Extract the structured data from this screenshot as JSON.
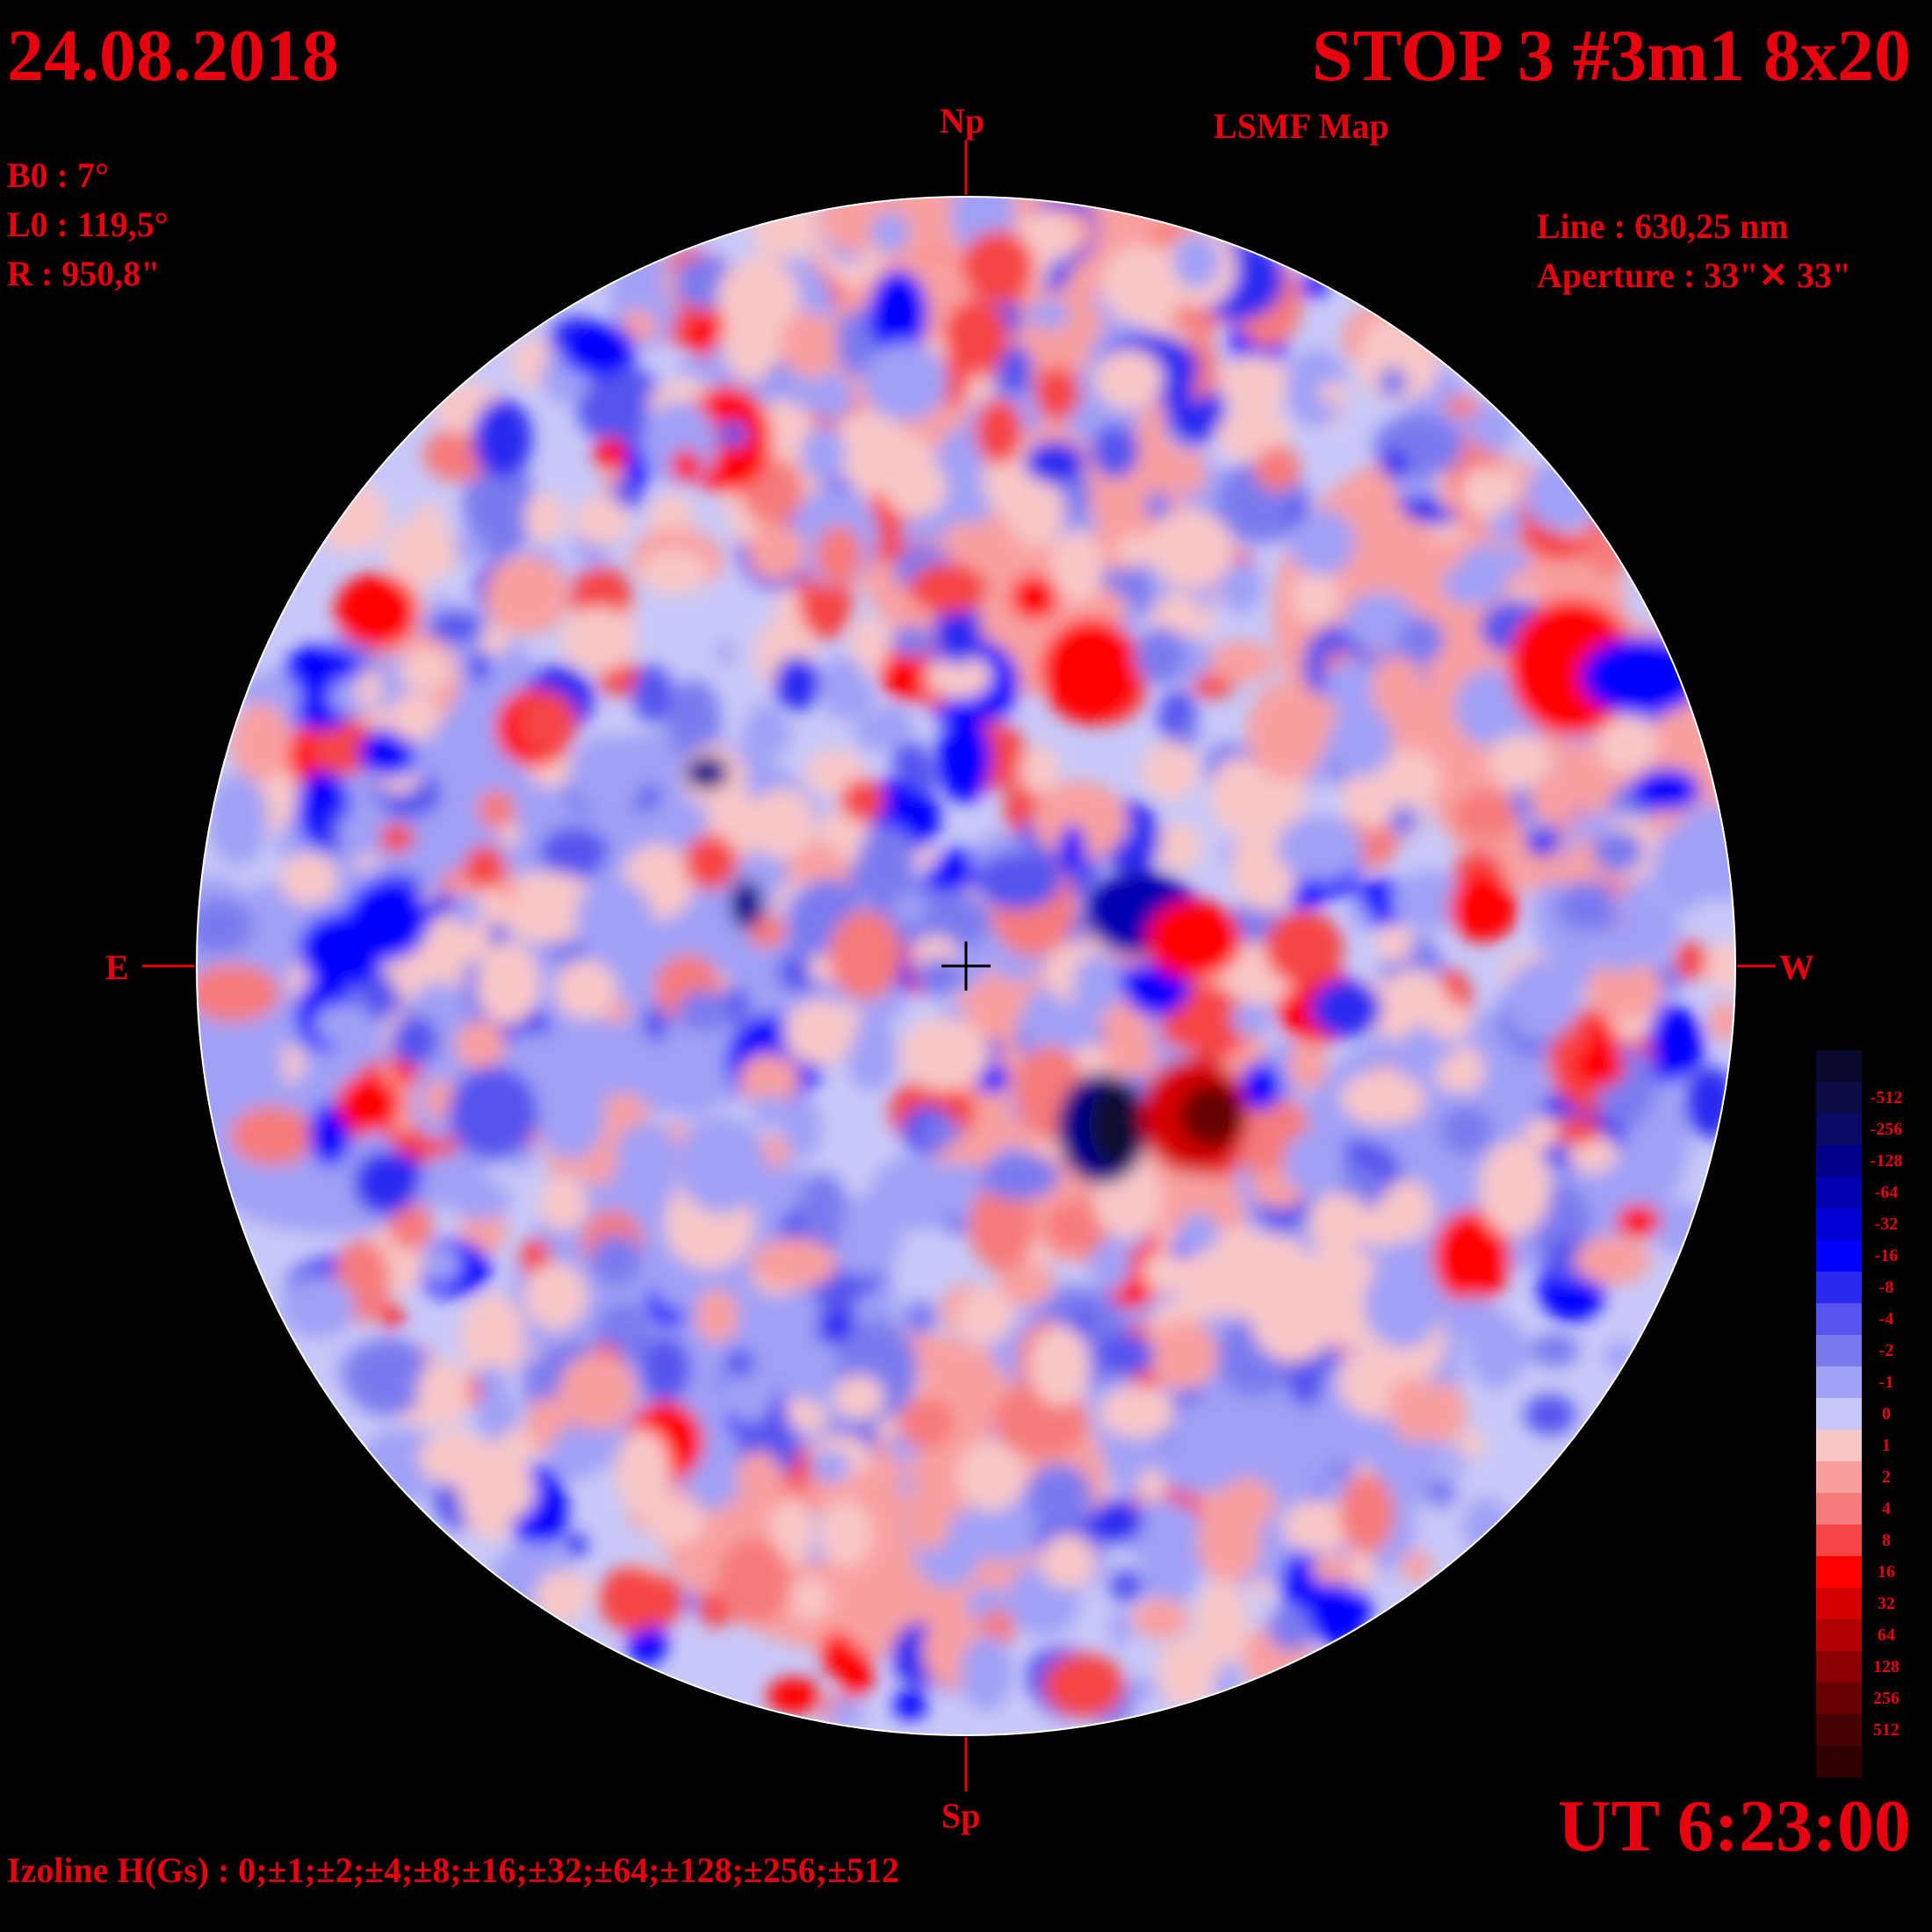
{
  "header": {
    "date": "24.08.2018",
    "title": "STOP 3 #3m1 8x20",
    "subtitle": "LSMF  Map"
  },
  "params": {
    "b0": "B0 : 7°",
    "l0": "L0 : 119,5°",
    "radius": "R  : 950,8\""
  },
  "instrument": {
    "line": "Line :  630,25 nm",
    "aperture": "Aperture : 33\"✕ 33\""
  },
  "time": "UT 6:23:00",
  "izoline": "Izoline H(Gs) : 0;±1;±2;±4;±8;±16;±32;±64;±128;±256;±512",
  "directions": {
    "north": "Np",
    "south": "Sp",
    "east": "E",
    "west": "W"
  },
  "legend": [
    {
      "label": "",
      "color": "#0a0a30"
    },
    {
      "label": "-512",
      "color": "#0b0b45"
    },
    {
      "label": "-256",
      "color": "#0a0a66"
    },
    {
      "label": "-128",
      "color": "#00008a"
    },
    {
      "label": "-64",
      "color": "#0000b0"
    },
    {
      "label": "-32",
      "color": "#0000d5"
    },
    {
      "label": "-16",
      "color": "#0000ff"
    },
    {
      "label": "-8",
      "color": "#2a2af0"
    },
    {
      "label": "-4",
      "color": "#5555ee"
    },
    {
      "label": "-2",
      "color": "#7a7aee"
    },
    {
      "label": "-1",
      "color": "#a0a0f5"
    },
    {
      "label": "0",
      "color": "#c8c8f8"
    },
    {
      "label": "1",
      "color": "#f8c8c8"
    },
    {
      "label": "2",
      "color": "#f8a0a0"
    },
    {
      "label": "4",
      "color": "#f57a7a"
    },
    {
      "label": "8",
      "color": "#f54545"
    },
    {
      "label": "16",
      "color": "#ff0000"
    },
    {
      "label": "32",
      "color": "#d50000"
    },
    {
      "label": "64",
      "color": "#b00000"
    },
    {
      "label": "128",
      "color": "#8a0000"
    },
    {
      "label": "256",
      "color": "#660000"
    },
    {
      "label": "512",
      "color": "#450000"
    },
    {
      "label": "",
      "color": "#300000"
    }
  ],
  "colors": {
    "text": "#e8000f",
    "background": "#000000",
    "contour": "#ffffff"
  }
}
